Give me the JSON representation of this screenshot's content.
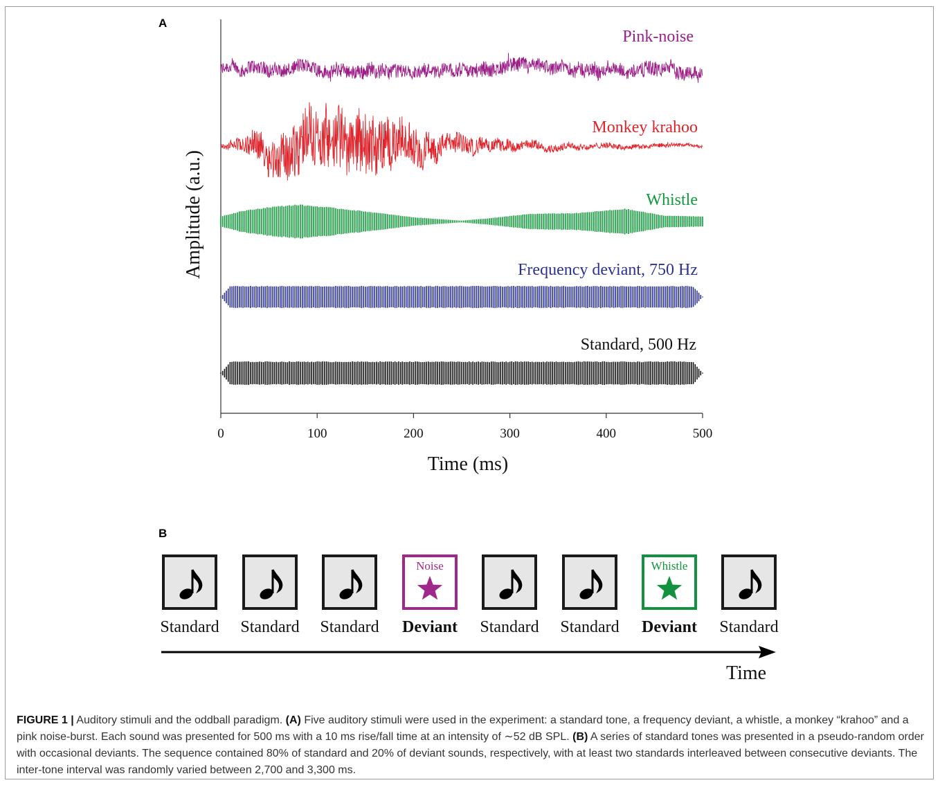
{
  "panel_a_label": "A",
  "panel_b_label": "B",
  "chart_data": {
    "type": "line",
    "xlabel": "Time (ms)",
    "ylabel": "Amplitude (a.u.)",
    "xlim": [
      0,
      500
    ],
    "x_ticks": [
      0,
      100,
      200,
      300,
      400,
      500
    ],
    "grid": false,
    "series": [
      {
        "name": "Pink-noise",
        "color": "#9b1f87",
        "kind": "noise",
        "envelope_x": [
          0,
          50,
          100,
          150,
          200,
          250,
          300,
          350,
          400,
          450,
          500
        ],
        "envelope": [
          0.45,
          0.5,
          0.5,
          0.5,
          0.45,
          0.45,
          0.5,
          0.45,
          0.5,
          0.5,
          0.45
        ]
      },
      {
        "name": "Monkey krahoo",
        "color": "#e0242b",
        "kind": "noise",
        "envelope_x": [
          0,
          20,
          50,
          80,
          110,
          140,
          170,
          200,
          240,
          280,
          320,
          380,
          440,
          500
        ],
        "envelope": [
          0.05,
          0.25,
          0.6,
          0.95,
          1.0,
          1.0,
          0.85,
          0.6,
          0.35,
          0.2,
          0.15,
          0.1,
          0.08,
          0.05
        ]
      },
      {
        "name": "Whistle",
        "color": "#119a3c",
        "kind": "tone",
        "envelope_x": [
          0,
          20,
          50,
          80,
          110,
          150,
          200,
          250,
          280,
          320,
          370,
          420,
          460,
          500
        ],
        "envelope": [
          0.3,
          0.6,
          0.85,
          1.0,
          0.85,
          0.6,
          0.25,
          0.05,
          0.2,
          0.45,
          0.5,
          0.75,
          0.35,
          0.3
        ]
      },
      {
        "name": "Frequency deviant, 750 Hz",
        "color": "#2b3192",
        "kind": "tone",
        "envelope_x": [
          0,
          10,
          490,
          500
        ],
        "envelope": [
          0.0,
          1.0,
          1.0,
          0.0
        ]
      },
      {
        "name": "Standard, 500 Hz",
        "color": "#111111",
        "kind": "tone",
        "envelope_x": [
          0,
          10,
          490,
          500
        ],
        "envelope": [
          0.0,
          1.0,
          1.0,
          0.0
        ]
      }
    ]
  },
  "sequence": [
    {
      "kind": "standard",
      "label": "Standard",
      "bold": false,
      "icon": "music-note-icon"
    },
    {
      "kind": "standard",
      "label": "Standard",
      "bold": false,
      "icon": "music-note-icon"
    },
    {
      "kind": "standard",
      "label": "Standard",
      "bold": false,
      "icon": "music-note-icon"
    },
    {
      "kind": "noise",
      "label": "Deviant",
      "bold": true,
      "box_title": "Noise",
      "icon": "star-icon",
      "color": "#a0288c"
    },
    {
      "kind": "standard",
      "label": "Standard",
      "bold": false,
      "icon": "music-note-icon"
    },
    {
      "kind": "standard",
      "label": "Standard",
      "bold": false,
      "icon": "music-note-icon"
    },
    {
      "kind": "whistle",
      "label": "Deviant",
      "bold": true,
      "box_title": "Whistle",
      "icon": "star-icon",
      "color": "#12923f"
    },
    {
      "kind": "standard",
      "label": "Standard",
      "bold": false,
      "icon": "music-note-icon"
    }
  ],
  "time_arrow_label": "Time",
  "caption": {
    "figure_label": "FIGURE 1 |",
    "intro": " Auditory stimuli and the oddball paradigm. ",
    "a_marker": "(A)",
    "a_text": " Five auditory stimuli were used in the experiment: a standard tone, a frequency deviant, a whistle, a monkey “krahoo” and a pink noise-burst. Each sound was presented for 500 ms with a 10 ms rise/fall time at an intensity of ∼52 dB SPL. ",
    "b_marker": "(B)",
    "b_text": " A series of standard tones was presented in a pseudo-random order with occasional deviants. The sequence contained 80% of standard and 20% of deviant sounds, respectively, with at least two standards interleaved between consecutive deviants. The inter-tone interval was randomly varied between 2,700 and 3,300 ms."
  }
}
